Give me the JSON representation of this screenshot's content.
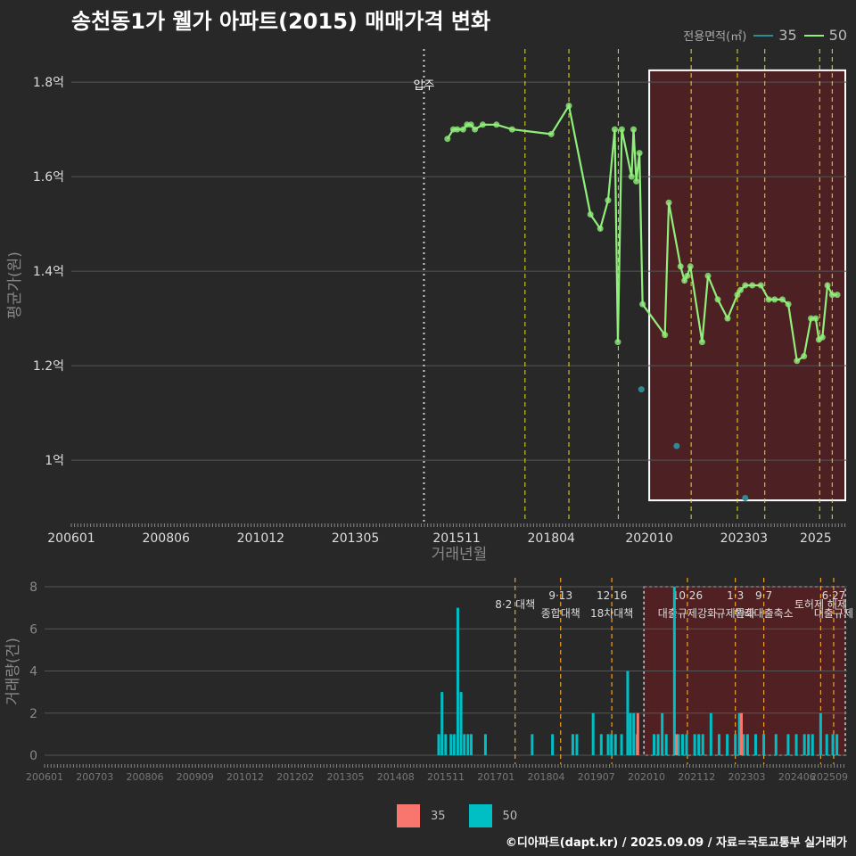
{
  "title": "송천동1가 웰가 아파트(2015) 매매가격 변화",
  "footer": "©디아파트(dapt.kr) / 2025.09.09 / 자료=국토교통부 실거래가",
  "legend_top": {
    "label": "전용면적(㎡)",
    "items": [
      "35",
      "50"
    ]
  },
  "legend_bottom": {
    "items": [
      "35",
      "50"
    ]
  },
  "colors": {
    "s35": "#2e8b96",
    "s50": "#90ee7a",
    "bar35": "#f8766d",
    "bar50": "#00bfc4",
    "vline": "#e6e020",
    "vline_bottom": "#f0a030",
    "highlight": "#5a1e22"
  },
  "chart_data": [
    {
      "type": "line",
      "title": "송천동1가 웰가 아파트(2015) 매매가격 변화",
      "xlabel": "거래년월",
      "ylabel": "평균가(원)",
      "ylim": [
        0.87,
        1.87
      ],
      "xlim": [
        2006.0,
        2025.8
      ],
      "x_ticks": [
        2006.0,
        2008.417,
        2010.833,
        2013.25,
        2015.833,
        2018.25,
        2020.75,
        2023.167,
        2025.0
      ],
      "x_tick_labels": [
        "200601",
        "200806",
        "201012",
        "201305",
        "201511",
        "201804",
        "202010",
        "202303",
        "2025"
      ],
      "y_ticks": [
        1.0,
        1.2,
        1.4,
        1.6,
        1.8
      ],
      "y_tick_labels": [
        "1억",
        "1.2억",
        "1.4억",
        "1.6억",
        "1.8억"
      ],
      "annotation": {
        "x": 2015.0,
        "label": "입주"
      },
      "event_lines": [
        2017.58,
        2018.7,
        2019.96,
        2021.82,
        2023.0,
        2023.7,
        2025.1,
        2025.42
      ],
      "highlight_range": [
        2020.75,
        2025.8
      ],
      "series": [
        {
          "name": "50",
          "x": [
            2015.6,
            2015.75,
            2015.85,
            2016.0,
            2016.1,
            2016.2,
            2016.3,
            2016.5,
            2016.85,
            2017.25,
            2018.25,
            2018.7,
            2019.25,
            2019.5,
            2019.7,
            2019.87,
            2019.95,
            2020.05,
            2020.3,
            2020.35,
            2020.42,
            2020.5,
            2020.58,
            2021.15,
            2021.25,
            2021.55,
            2021.65,
            2021.72,
            2021.8,
            2022.1,
            2022.25,
            2022.5,
            2022.75,
            2023.0,
            2023.08,
            2023.2,
            2023.38,
            2023.6,
            2023.8,
            2023.95,
            2024.15,
            2024.3,
            2024.52,
            2024.7,
            2024.88,
            2025.0,
            2025.08,
            2025.17,
            2025.3,
            2025.42,
            2025.55
          ],
          "y": [
            1.68,
            1.7,
            1.7,
            1.7,
            1.71,
            1.71,
            1.7,
            1.71,
            1.71,
            1.7,
            1.69,
            1.75,
            1.52,
            1.49,
            1.55,
            1.7,
            1.25,
            1.7,
            1.6,
            1.7,
            1.59,
            1.65,
            1.33,
            1.265,
            1.545,
            1.41,
            1.38,
            1.39,
            1.41,
            1.25,
            1.39,
            1.34,
            1.3,
            1.35,
            1.36,
            1.37,
            1.37,
            1.37,
            1.34,
            1.34,
            1.34,
            1.33,
            1.21,
            1.22,
            1.3,
            1.3,
            1.255,
            1.26,
            1.37,
            1.35,
            1.35
          ]
        },
        {
          "name": "35",
          "x": [
            2020.55,
            2021.45,
            2023.2
          ],
          "y": [
            1.15,
            1.03,
            0.92
          ]
        }
      ]
    },
    {
      "type": "bar",
      "xlabel": "",
      "ylabel": "거래량(건)",
      "ylim": [
        0,
        8
      ],
      "y_ticks": [
        0,
        2,
        4,
        6,
        8
      ],
      "x_tick_labels": [
        "200601",
        "200703",
        "200806",
        "200909",
        "201012",
        "201202",
        "201305",
        "201408",
        "201511",
        "201701",
        "201804",
        "201907",
        "202010",
        "202112",
        "202303",
        "202406",
        "202509"
      ],
      "annotations": [
        {
          "x": 2017.58,
          "line1": "",
          "line2": "8·2 대책"
        },
        {
          "x": 2018.7,
          "line1": "9·13",
          "line2": "종합대책"
        },
        {
          "x": 2019.96,
          "line1": "12·16",
          "line2": "18차대책"
        },
        {
          "x": 2021.82,
          "line1": "10·26",
          "line2": "대출규제강화"
        },
        {
          "x": 2023.0,
          "line1": "1·3",
          "line2": "규제완화"
        },
        {
          "x": 2023.7,
          "line1": "9·7",
          "line2": "특례대출축소"
        },
        {
          "x": 2025.1,
          "line1": "",
          "line2": "토허제 해제"
        },
        {
          "x": 2025.42,
          "line1": "6·27",
          "line2": "대출규제"
        }
      ],
      "series": [
        {
          "name": "50",
          "x": [
            2015.7,
            2015.78,
            2015.87,
            2016.0,
            2016.08,
            2016.17,
            2016.25,
            2016.33,
            2016.42,
            2016.5,
            2016.85,
            2018.0,
            2018.5,
            2019.0,
            2019.1,
            2019.5,
            2019.7,
            2019.87,
            2019.95,
            2020.05,
            2020.2,
            2020.35,
            2020.42,
            2020.5,
            2020.58,
            2021.0,
            2021.1,
            2021.2,
            2021.3,
            2021.5,
            2021.6,
            2021.7,
            2021.8,
            2022.0,
            2022.1,
            2022.2,
            2022.4,
            2022.6,
            2022.8,
            2023.0,
            2023.1,
            2023.2,
            2023.3,
            2023.5,
            2023.7,
            2024.0,
            2024.3,
            2024.5,
            2024.7,
            2024.8,
            2024.9,
            2025.1,
            2025.25,
            2025.4,
            2025.5
          ],
          "values": [
            1,
            3,
            1,
            1,
            1,
            7,
            3,
            1,
            1,
            1,
            1,
            1,
            1,
            1,
            1,
            2,
            1,
            1,
            1,
            1,
            1,
            4,
            2,
            2,
            1,
            1,
            1,
            2,
            1,
            8,
            1,
            1,
            1,
            1,
            1,
            1,
            2,
            1,
            1,
            1,
            2,
            1,
            1,
            1,
            1,
            1,
            1,
            1,
            1,
            1,
            1,
            2,
            1,
            1,
            1
          ]
        },
        {
          "name": "35",
          "x": [
            2020.6,
            2021.55,
            2023.15
          ],
          "values": [
            2,
            1,
            2
          ]
        }
      ]
    }
  ]
}
